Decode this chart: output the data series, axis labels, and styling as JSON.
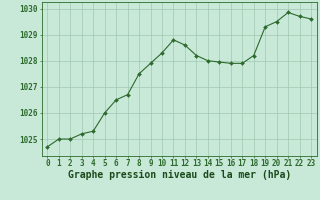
{
  "x": [
    0,
    1,
    2,
    3,
    4,
    5,
    6,
    7,
    8,
    9,
    10,
    11,
    12,
    13,
    14,
    15,
    16,
    17,
    18,
    19,
    20,
    21,
    22,
    23
  ],
  "y": [
    1024.7,
    1025.0,
    1025.0,
    1025.2,
    1025.3,
    1026.0,
    1026.5,
    1026.7,
    1027.5,
    1027.9,
    1028.3,
    1028.8,
    1028.6,
    1028.2,
    1028.0,
    1027.95,
    1027.9,
    1027.9,
    1028.2,
    1029.3,
    1029.5,
    1029.85,
    1029.7,
    1029.6
  ],
  "line_color": "#2d6a2d",
  "marker_color": "#2d6a2d",
  "bg_color": "#c8e8d8",
  "grid_color": "#a0c8b0",
  "border_color": "#2d6a2d",
  "xlabel": "Graphe pression niveau de la mer (hPa)",
  "xlabel_fontsize": 7,
  "ylabel_ticks": [
    1025,
    1026,
    1027,
    1028,
    1029,
    1030
  ],
  "ylim": [
    1024.35,
    1030.25
  ],
  "xlim": [
    -0.5,
    23.5
  ],
  "tick_color": "#2d6a2d",
  "tick_fontsize": 5.5,
  "title_color": "#1a4a1a"
}
